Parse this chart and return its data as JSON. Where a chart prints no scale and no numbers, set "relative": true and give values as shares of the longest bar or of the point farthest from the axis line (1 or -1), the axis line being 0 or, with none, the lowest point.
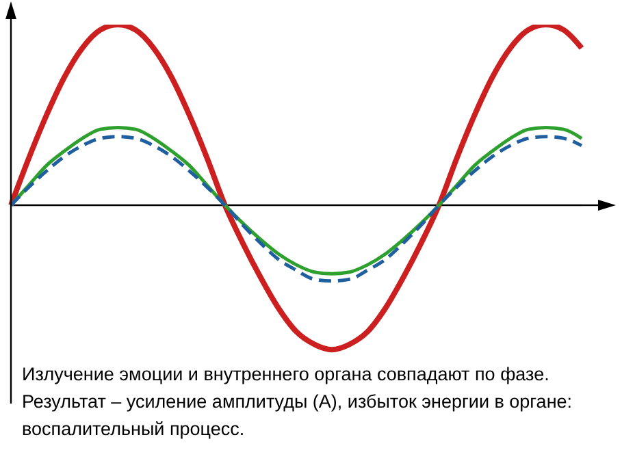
{
  "chart_data": {
    "type": "line",
    "relative": true,
    "marker": "none",
    "categories": [
      null,
      null,
      null,
      null,
      null,
      null,
      null,
      null,
      null,
      null,
      null,
      null,
      null,
      null,
      null,
      null,
      null,
      null,
      null,
      null,
      null,
      null,
      null,
      null,
      null,
      null,
      null,
      null,
      null,
      null,
      null,
      null,
      null
    ],
    "series": [
      {
        "color": "#cc1f1f",
        "line_style": "solid",
        "values": [
          0,
          0.26,
          0.5,
          0.71,
          0.87,
          0.97,
          1,
          0.97,
          0.87,
          0.71,
          0.5,
          0.26,
          0,
          -0.21,
          -0.4,
          -0.57,
          -0.7,
          -0.77,
          -0.8,
          -0.77,
          -0.7,
          -0.57,
          -0.4,
          -0.21,
          0,
          0.26,
          0.5,
          0.71,
          0.87,
          0.97,
          1,
          0.97,
          0.87
        ]
      },
      {
        "color": "#2ea02e",
        "line_style": "solid",
        "values": [
          0,
          0.11,
          0.22,
          0.3,
          0.37,
          0.42,
          0.43,
          0.42,
          0.37,
          0.3,
          0.22,
          0.11,
          0,
          -0.1,
          -0.19,
          -0.27,
          -0.33,
          -0.37,
          -0.38,
          -0.37,
          -0.33,
          -0.27,
          -0.19,
          -0.1,
          0,
          0.11,
          0.22,
          0.3,
          0.37,
          0.42,
          0.43,
          0.42,
          0.37
        ]
      },
      {
        "color": "#1f5fa0",
        "line_style": "dashed",
        "values": [
          0,
          0.1,
          0.19,
          0.27,
          0.33,
          0.37,
          0.38,
          0.37,
          0.33,
          0.27,
          0.19,
          0.1,
          0,
          -0.11,
          -0.21,
          -0.3,
          -0.36,
          -0.41,
          -0.42,
          -0.41,
          -0.36,
          -0.3,
          -0.21,
          -0.11,
          0,
          0.1,
          0.19,
          0.27,
          0.33,
          0.37,
          0.38,
          0.37,
          0.33
        ]
      }
    ],
    "annotations": [
      "Излучение эмоции и внутреннего органа совпадают по фазе.",
      "Результат – усиление амплитуды (А), избыток энергии в органе:",
      "воспалительный процесс."
    ]
  }
}
